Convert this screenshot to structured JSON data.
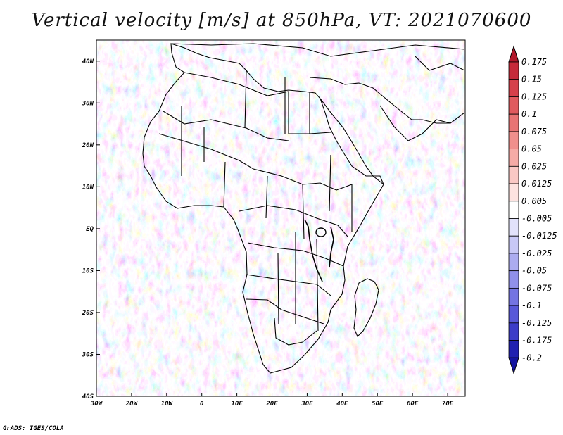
{
  "title": "Vertical velocity [m/s] at 850hPa, VT: 2021070600",
  "footer": "GrADS: IGES/COLA",
  "map": {
    "lat_ticks": [
      "40N",
      "30N",
      "20N",
      "10N",
      "EQ",
      "10S",
      "20S",
      "30S",
      "40S"
    ],
    "lon_ticks": [
      "30W",
      "20W",
      "10W",
      "0",
      "10E",
      "20E",
      "30E",
      "40E",
      "50E",
      "60E",
      "70E"
    ],
    "lat_range": [
      -40,
      45
    ],
    "lon_range": [
      -30,
      75
    ],
    "field": "vertical velocity at 850hPa"
  },
  "colorbar": {
    "labels": [
      "0.175",
      "0.15",
      "0.125",
      "0.1",
      "0.075",
      "0.05",
      "0.025",
      "0.0125",
      "0.005",
      "-0.005",
      "-0.0125",
      "-0.025",
      "-0.05",
      "-0.075",
      "-0.1",
      "-0.125",
      "-0.175",
      "-0.2"
    ],
    "colors": [
      "#b2182b",
      "#c62a3a",
      "#d6404a",
      "#e05a5e",
      "#e87474",
      "#f08f8c",
      "#f6aba6",
      "#fac8c4",
      "#fde3e0",
      "#ffffff",
      "#e2e2fb",
      "#c8c8f6",
      "#acacf0",
      "#9090ea",
      "#7474e2",
      "#5858d8",
      "#3c3cc8",
      "#2020b0",
      "#1414a0"
    ]
  }
}
